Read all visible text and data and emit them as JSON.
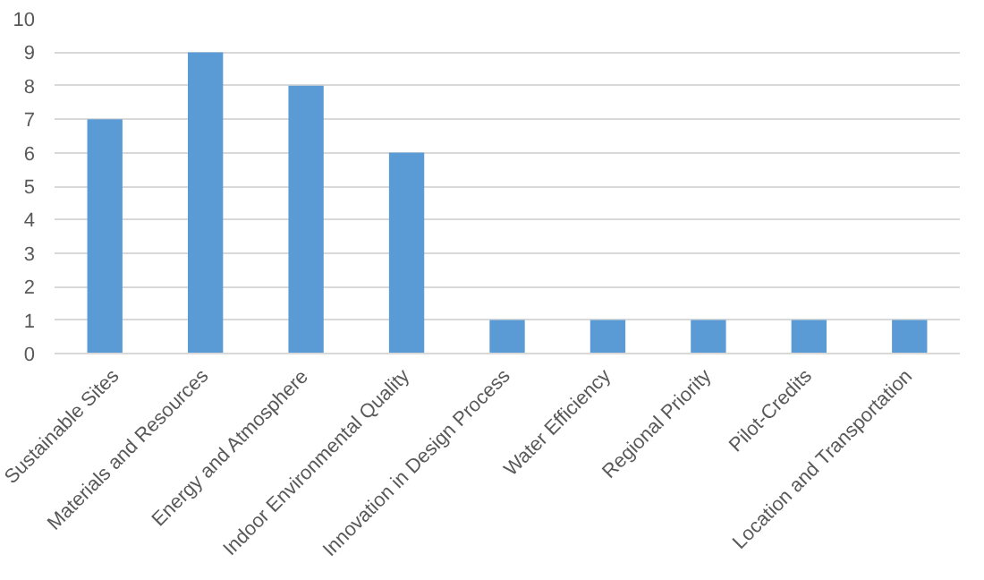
{
  "chart_data": {
    "type": "bar",
    "categories": [
      "Sustainable Sites",
      "Materials and Resources",
      "Energy and Atmosphere",
      "Indoor Environmental Quality",
      "Innovation in Design Process",
      "Water Efficiency",
      "Regional Priority",
      "Pilot-Credits",
      "Location and Transportation"
    ],
    "values": [
      7,
      9,
      8,
      6,
      1,
      1,
      1,
      1,
      1
    ],
    "color": "#5b9bd5",
    "ylim": [
      0,
      10
    ],
    "yticks": [
      0,
      1,
      2,
      3,
      4,
      5,
      6,
      7,
      8,
      9,
      10
    ],
    "grid": "y"
  }
}
